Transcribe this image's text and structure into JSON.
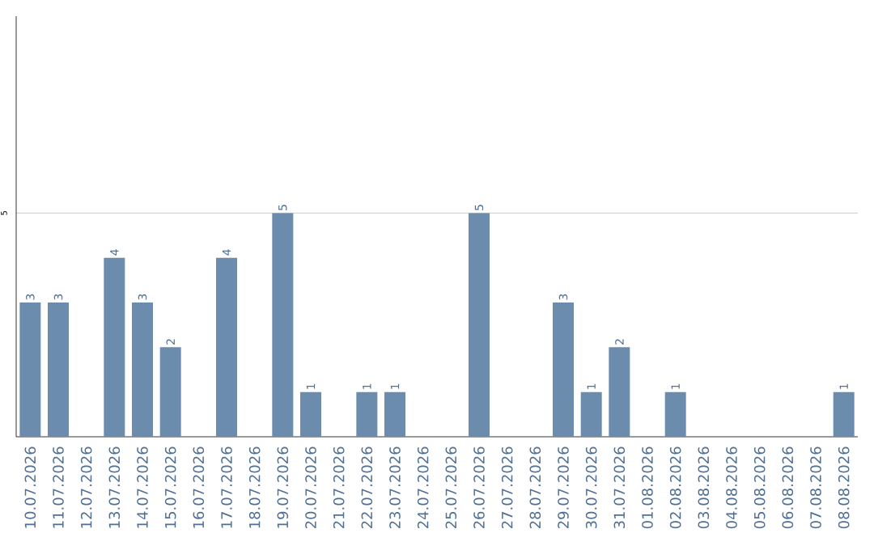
{
  "chart_data": {
    "type": "bar",
    "categories": [
      "10.07.2026",
      "11.07.2026",
      "12.07.2026",
      "13.07.2026",
      "14.07.2026",
      "15.07.2026",
      "16.07.2026",
      "17.07.2026",
      "18.07.2026",
      "19.07.2026",
      "20.07.2026",
      "21.07.2026",
      "22.07.2026",
      "23.07.2026",
      "24.07.2026",
      "25.07.2026",
      "26.07.2026",
      "27.07.2026",
      "28.07.2026",
      "29.07.2026",
      "30.07.2026",
      "31.07.2026",
      "01.08.2026",
      "02.08.2026",
      "03.08.2026",
      "04.08.2026",
      "05.08.2026",
      "06.08.2026",
      "07.08.2026",
      "08.08.2026"
    ],
    "values": [
      3,
      3,
      null,
      4,
      3,
      2,
      null,
      4,
      null,
      5,
      1,
      null,
      1,
      1,
      null,
      null,
      5,
      null,
      null,
      3,
      1,
      2,
      null,
      1,
      null,
      null,
      null,
      null,
      null,
      1
    ],
    "color": "#6b8cad",
    "ylim": [
      0,
      9.4
    ],
    "yticks": [
      5
    ],
    "grid": "y",
    "data_labels": true
  }
}
